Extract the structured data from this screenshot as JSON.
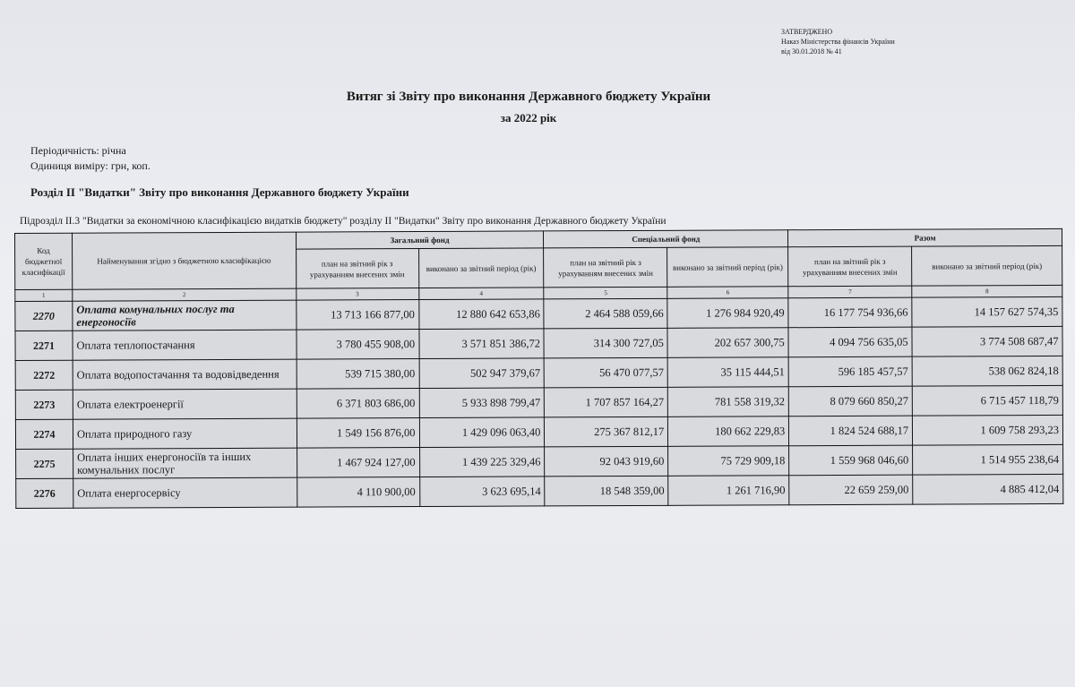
{
  "approval": {
    "line1": "ЗАТВЕРДЖЕНО",
    "line2": "Наказ Міністерства фінансів України",
    "line3": "від 30.01.2018  № 41"
  },
  "title": "Витяг зі Звіту про виконання Державного бюджету України",
  "subtitle": "за 2022 рік",
  "periodicity": "Періодичність: річна",
  "unit": "Одиниця виміру: грн, коп.",
  "section": "Розділ ІІ \"Видатки\" Звіту про виконання Державного бюджету України",
  "subsection": "Підрозділ ІІ.3 \"Видатки за економічною класифікацією видатків бюджету\" розділу ІІ \"Видатки\" Звіту про виконання Державного бюджету України",
  "table": {
    "header": {
      "code": "Код бюджетної класифікації",
      "name": "Найменування згідно з бюджетною класифікацією",
      "groups": [
        "Загальний фонд",
        "Спеціальний фонд",
        "Разом"
      ],
      "plan": "план на звітний  рік з урахуванням внесених змін",
      "done": "виконано за звітний період (рік)",
      "col_numbers": [
        "1",
        "2",
        "3",
        "4",
        "5",
        "6",
        "7",
        "8"
      ]
    },
    "rows": [
      {
        "code": "2270",
        "name": "Оплата комунальних послуг та енергоносіїв",
        "bold": true,
        "values": [
          "13 713 166 877,00",
          "12 880 642 653,86",
          "2 464 588 059,66",
          "1 276 984 920,49",
          "16 177 754 936,66",
          "14 157 627 574,35"
        ]
      },
      {
        "code": "2271",
        "name": "Оплата теплопостачання",
        "values": [
          "3 780 455 908,00",
          "3 571 851 386,72",
          "314 300 727,05",
          "202 657 300,75",
          "4 094 756 635,05",
          "3 774 508 687,47"
        ]
      },
      {
        "code": "2272",
        "name": "Оплата водопостачання та водовідведення",
        "values": [
          "539 715 380,00",
          "502 947 379,67",
          "56 470 077,57",
          "35 115 444,51",
          "596 185 457,57",
          "538 062 824,18"
        ]
      },
      {
        "code": "2273",
        "name": "Оплата електроенергії",
        "values": [
          "6 371 803 686,00",
          "5 933 898 799,47",
          "1 707 857 164,27",
          "781 558 319,32",
          "8 079 660 850,27",
          "6 715 457 118,79"
        ]
      },
      {
        "code": "2274",
        "name": "Оплата природного газу",
        "values": [
          "1 549 156 876,00",
          "1 429 096 063,40",
          "275 367 812,17",
          "180 662 229,83",
          "1 824 524 688,17",
          "1 609 758 293,23"
        ]
      },
      {
        "code": "2275",
        "name": "Оплата інших енергоносіїв та інших комунальних послуг",
        "values": [
          "1 467 924 127,00",
          "1 439 225 329,46",
          "92 043 919,60",
          "75 729 909,18",
          "1 559 968 046,60",
          "1 514 955 238,64"
        ]
      },
      {
        "code": "2276",
        "name": "Оплата енергосервісу",
        "values": [
          "4 110 900,00",
          "3 623 695,14",
          "18 548 359,00",
          "1 261 716,90",
          "22 659 259,00",
          "4 885 412,04"
        ]
      }
    ]
  }
}
